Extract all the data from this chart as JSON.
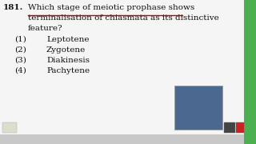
{
  "question_number": "181.",
  "question_line1": "Which stage of meiotic prophase shows",
  "question_line2": "terminalisation of chiasmata as its distinctive",
  "question_line3": "feature?",
  "options_nums": [
    "(1)",
    "(2)",
    "(3)",
    "(4)"
  ],
  "options_texts": [
    "Leptotene",
    "Zygotene",
    "Diakinesis",
    "Pachytene"
  ],
  "bg_color": "#c8c8c8",
  "inner_bg_color": "#f0f0f0",
  "border_right_color": "#4caf50",
  "text_color": "#111111",
  "underline_color": "#cc0000",
  "question_fontsize": 7.5,
  "option_fontsize": 7.5
}
